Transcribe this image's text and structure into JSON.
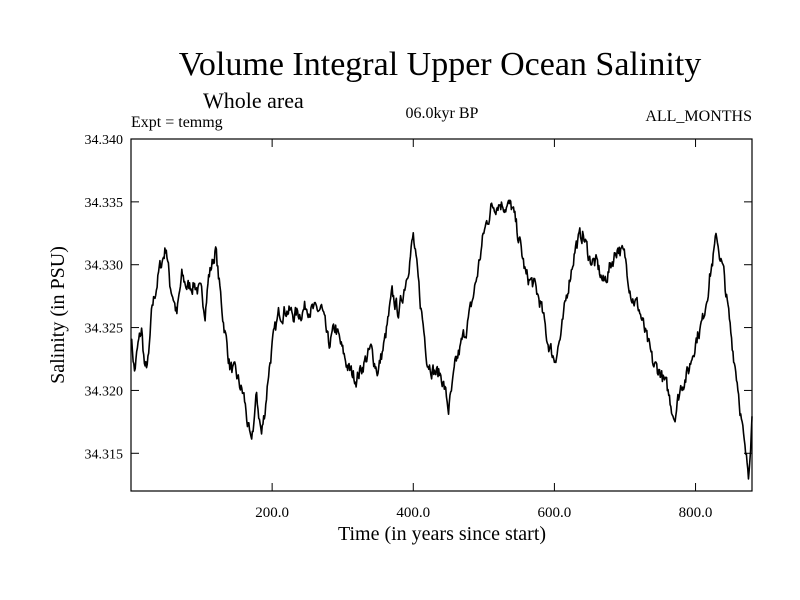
{
  "chart_data": {
    "type": "line",
    "title": "Volume Integral Upper Ocean Salinity",
    "subtitle": "Whole area",
    "experiment_label": "Expt = temmg",
    "period_label": "06.0kyr BP",
    "months_label": "ALL_MONTHS",
    "xlabel": "Time (in years since start)",
    "ylabel": "Salinity (in PSU)",
    "xlim": [
      0,
      880
    ],
    "ylim": [
      34.312,
      34.34
    ],
    "x_ticks": [
      200,
      400,
      600,
      800
    ],
    "x_tick_labels": [
      "200.0",
      "400.0",
      "600.0",
      "800.0"
    ],
    "y_ticks": [
      34.315,
      34.32,
      34.325,
      34.33,
      34.335,
      34.34
    ],
    "y_tick_labels": [
      "34.315",
      "34.320",
      "34.325",
      "34.330",
      "34.335",
      "34.340"
    ],
    "grid": false,
    "line_color": "#000000",
    "series": [
      {
        "name": "Salinity",
        "keypoints": [
          [
            0,
            34.3245
          ],
          [
            5,
            34.3215
          ],
          [
            10,
            34.3235
          ],
          [
            15,
            34.3248
          ],
          [
            20,
            34.3215
          ],
          [
            25,
            34.3225
          ],
          [
            30,
            34.3265
          ],
          [
            40,
            34.3295
          ],
          [
            50,
            34.3315
          ],
          [
            55,
            34.3285
          ],
          [
            60,
            34.3275
          ],
          [
            65,
            34.326
          ],
          [
            72,
            34.329
          ],
          [
            80,
            34.3282
          ],
          [
            90,
            34.3285
          ],
          [
            100,
            34.3275
          ],
          [
            105,
            34.3265
          ],
          [
            110,
            34.329
          ],
          [
            120,
            34.3312
          ],
          [
            125,
            34.3285
          ],
          [
            130,
            34.326
          ],
          [
            140,
            34.322
          ],
          [
            150,
            34.321
          ],
          [
            160,
            34.3195
          ],
          [
            170,
            34.3155
          ],
          [
            178,
            34.3195
          ],
          [
            185,
            34.3165
          ],
          [
            190,
            34.3185
          ],
          [
            195,
            34.3215
          ],
          [
            200,
            34.3235
          ],
          [
            210,
            34.3262
          ],
          [
            220,
            34.3265
          ],
          [
            230,
            34.326
          ],
          [
            240,
            34.3262
          ],
          [
            250,
            34.3268
          ],
          [
            260,
            34.3262
          ],
          [
            270,
            34.3265
          ],
          [
            280,
            34.3235
          ],
          [
            290,
            34.325
          ],
          [
            300,
            34.323
          ],
          [
            310,
            34.3215
          ],
          [
            320,
            34.321
          ],
          [
            330,
            34.3222
          ],
          [
            340,
            34.3232
          ],
          [
            350,
            34.3215
          ],
          [
            360,
            34.324
          ],
          [
            370,
            34.3275
          ],
          [
            380,
            34.3262
          ],
          [
            390,
            34.329
          ],
          [
            400,
            34.3322
          ],
          [
            410,
            34.327
          ],
          [
            420,
            34.3225
          ],
          [
            430,
            34.3215
          ],
          [
            440,
            34.3212
          ],
          [
            445,
            34.32
          ],
          [
            450,
            34.3185
          ],
          [
            455,
            34.32
          ],
          [
            460,
            34.322
          ],
          [
            470,
            34.324
          ],
          [
            480,
            34.326
          ],
          [
            490,
            34.329
          ],
          [
            500,
            34.3325
          ],
          [
            510,
            34.3345
          ],
          [
            520,
            34.335
          ],
          [
            530,
            34.3348
          ],
          [
            540,
            34.3345
          ],
          [
            550,
            34.332
          ],
          [
            560,
            34.329
          ],
          [
            570,
            34.3285
          ],
          [
            580,
            34.327
          ],
          [
            590,
            34.324
          ],
          [
            600,
            34.3225
          ],
          [
            610,
            34.3245
          ],
          [
            620,
            34.3285
          ],
          [
            630,
            34.3315
          ],
          [
            640,
            34.3325
          ],
          [
            650,
            34.3305
          ],
          [
            660,
            34.33
          ],
          [
            670,
            34.3285
          ],
          [
            680,
            34.33
          ],
          [
            690,
            34.3315
          ],
          [
            700,
            34.3305
          ],
          [
            710,
            34.3275
          ],
          [
            720,
            34.3265
          ],
          [
            730,
            34.3242
          ],
          [
            740,
            34.322
          ],
          [
            750,
            34.3215
          ],
          [
            760,
            34.32
          ],
          [
            770,
            34.318
          ],
          [
            780,
            34.3205
          ],
          [
            790,
            34.3215
          ],
          [
            800,
            34.324
          ],
          [
            810,
            34.3255
          ],
          [
            820,
            34.329
          ],
          [
            830,
            34.3322
          ],
          [
            840,
            34.3292
          ],
          [
            850,
            34.3245
          ],
          [
            860,
            34.3205
          ],
          [
            870,
            34.315
          ],
          [
            875,
            34.3135
          ],
          [
            880,
            34.318
          ]
        ]
      }
    ]
  }
}
